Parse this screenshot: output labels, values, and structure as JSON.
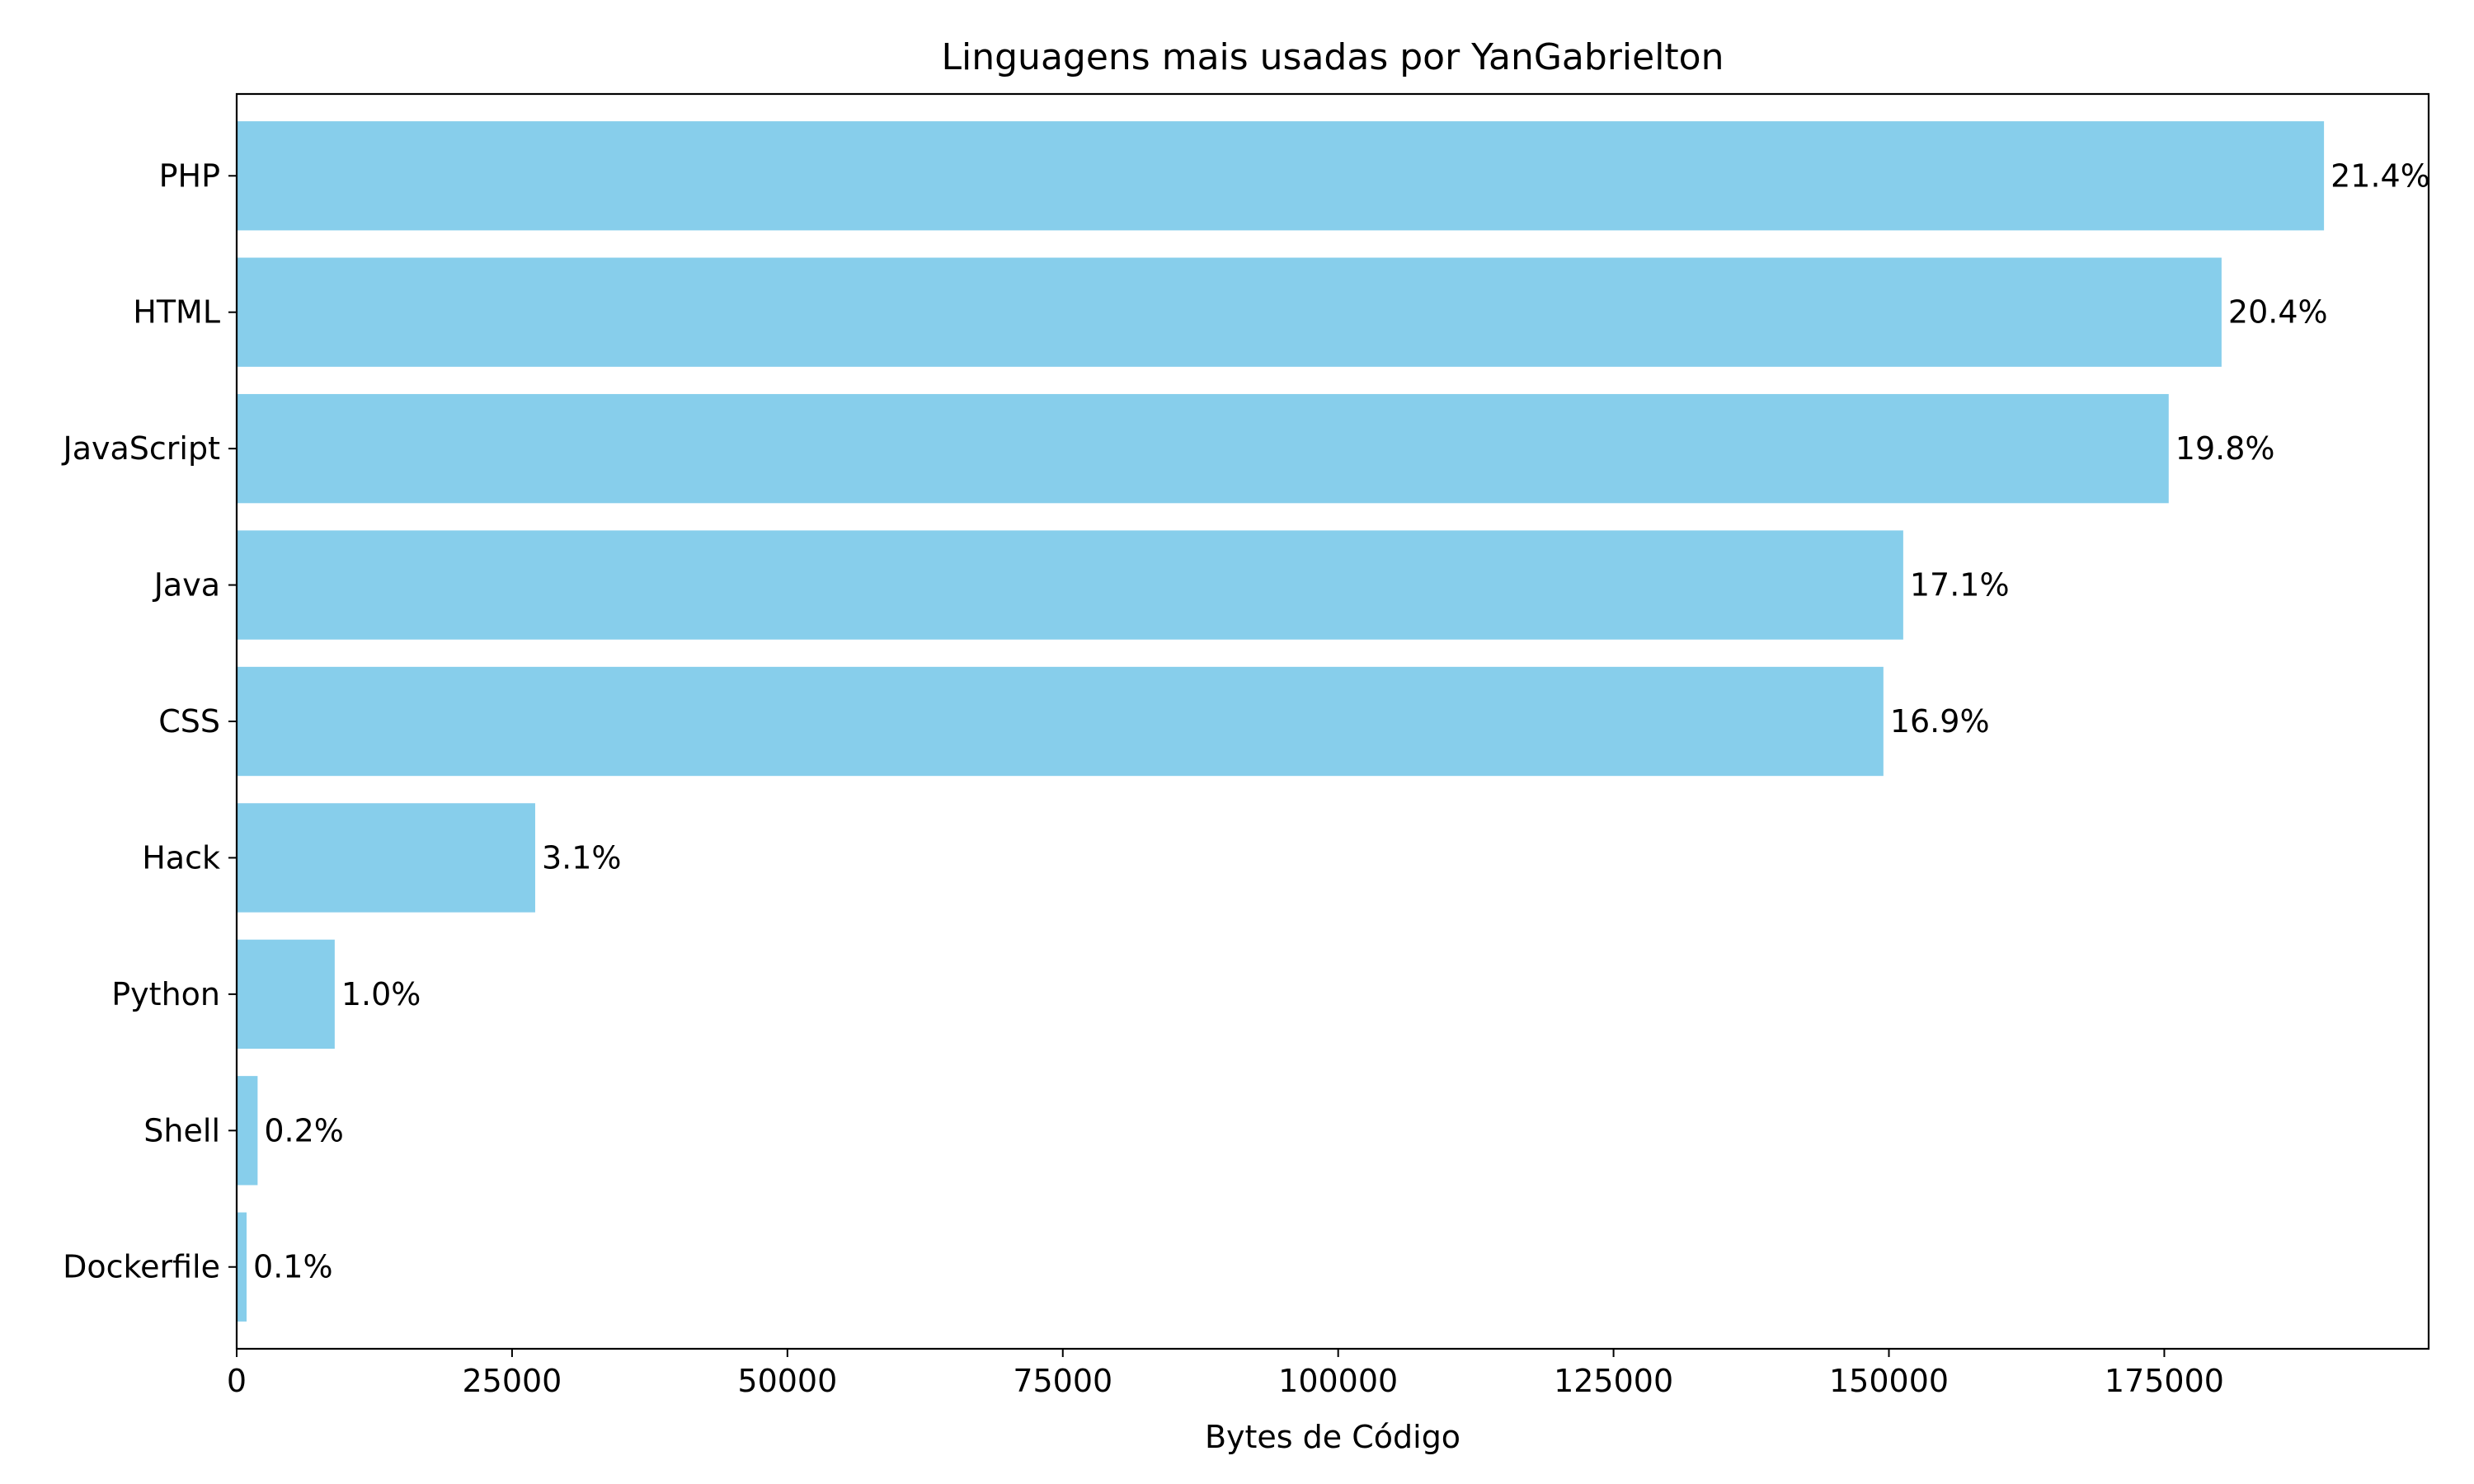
{
  "chart_data": {
    "type": "bar",
    "orientation": "horizontal",
    "title": "Linguagens mais usadas por YanGabrielton",
    "xlabel": "Bytes de Código",
    "ylabel": "",
    "xlim": [
      0,
      199000
    ],
    "xticks": [
      0,
      25000,
      50000,
      75000,
      100000,
      125000,
      150000,
      175000
    ],
    "xtick_labels": [
      "0",
      "25000",
      "50000",
      "75000",
      "100000",
      "125000",
      "150000",
      "175000"
    ],
    "grid": false,
    "bar_color": "#87CEEB",
    "categories": [
      "PHP",
      "HTML",
      "JavaScript",
      "Java",
      "CSS",
      "Hack",
      "Python",
      "Shell",
      "Dockerfile"
    ],
    "values": [
      189500,
      180200,
      175400,
      151300,
      149500,
      27100,
      8900,
      1900,
      900
    ],
    "labels": [
      "21.4%",
      "20.4%",
      "19.8%",
      "17.1%",
      "16.9%",
      "3.1%",
      "1.0%",
      "0.2%",
      "0.1%"
    ]
  }
}
